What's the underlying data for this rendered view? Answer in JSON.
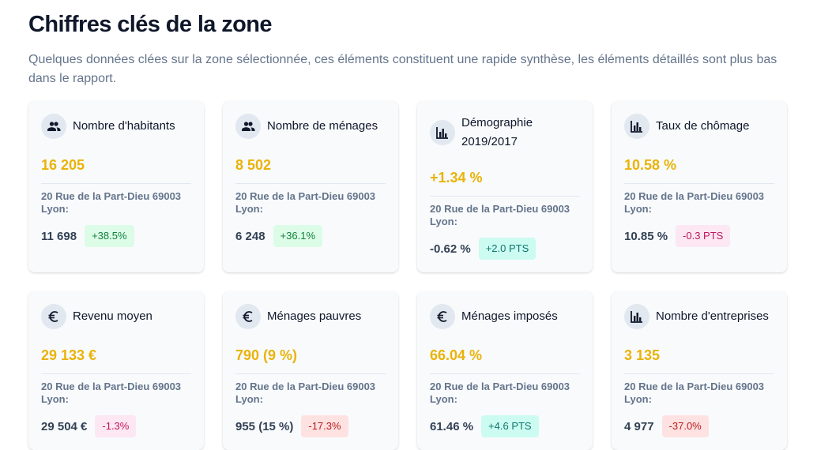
{
  "header": {
    "title": "Chiffres clés de la zone",
    "description": "Quelques données clées sur la zone sélectionnée, ces éléments constituent une rapide synthèse, les éléments détaillés sont plus bas dans le rapport."
  },
  "cards": [
    {
      "icon": "people",
      "label": "Nombre d'habitants",
      "value": "16 205",
      "location": "20 Rue de la Part-Dieu 69003 Lyon:",
      "compare_value": "11 698",
      "badge": "+38.5%",
      "badge_tone": "green"
    },
    {
      "icon": "people",
      "label": "Nombre de ménages",
      "value": "8 502",
      "location": "20 Rue de la Part-Dieu 69003 Lyon:",
      "compare_value": "6 248",
      "badge": "+36.1%",
      "badge_tone": "green"
    },
    {
      "icon": "chart",
      "label": "Démographie 2019/2017",
      "value": "+1.34 %",
      "location": "20 Rue de la Part-Dieu 69003 Lyon:",
      "compare_value": "-0.62 %",
      "badge": "+2.0 PTS",
      "badge_tone": "teal"
    },
    {
      "icon": "chart",
      "label": "Taux de chômage",
      "value": "10.58 %",
      "location": "20 Rue de la Part-Dieu 69003 Lyon:",
      "compare_value": "10.85 %",
      "badge": "-0.3 PTS",
      "badge_tone": "pink"
    },
    {
      "icon": "euro",
      "label": "Revenu moyen",
      "value": "29 133 €",
      "location": "20 Rue de la Part-Dieu 69003 Lyon:",
      "compare_value": "29 504 €",
      "badge": "-1.3%",
      "badge_tone": "pink"
    },
    {
      "icon": "euro",
      "label": "Ménages pauvres",
      "value": "790 (9 %)",
      "location": "20 Rue de la Part-Dieu 69003 Lyon:",
      "compare_value": "955 (15 %)",
      "badge": "-17.3%",
      "badge_tone": "red"
    },
    {
      "icon": "euro",
      "label": "Ménages imposés",
      "value": "66.04 %",
      "location": "20 Rue de la Part-Dieu 69003 Lyon:",
      "compare_value": "61.46 %",
      "badge": "+4.6 PTS",
      "badge_tone": "teal"
    },
    {
      "icon": "chart",
      "label": "Nombre d'entreprises",
      "value": "3 135",
      "location": "20 Rue de la Part-Dieu 69003 Lyon:",
      "compare_value": "4 977",
      "badge": "-37.0%",
      "badge_tone": "red"
    }
  ]
}
